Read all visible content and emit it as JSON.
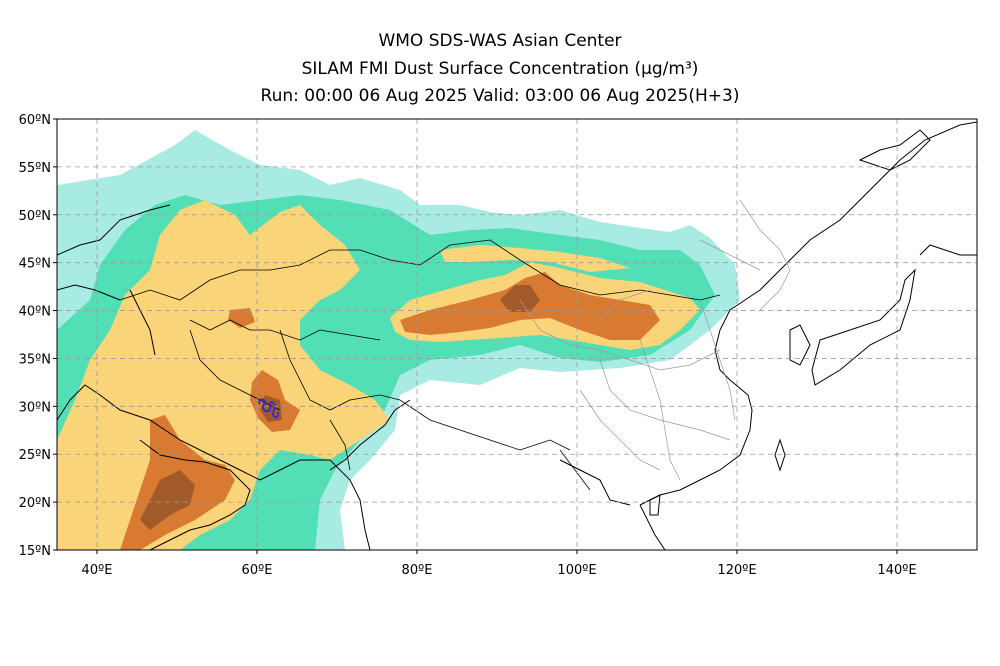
{
  "header": {
    "line1": "WMO SDS-WAS Asian Center",
    "line2": "SILAM FMI Dust Surface Concentration (μg/m³)",
    "line3": "Run: 00:00 06 Aug 2025    Valid: 03:00 06 Aug 2025(H+3)"
  },
  "map": {
    "projection": "lat-lon",
    "lon_range": [
      35,
      150
    ],
    "lat_range": [
      15,
      60
    ],
    "lat_ticks": [
      {
        "value": 60,
        "label": "60ºN"
      },
      {
        "value": 55,
        "label": "55ºN"
      },
      {
        "value": 50,
        "label": "50ºN"
      },
      {
        "value": 45,
        "label": "45ºN"
      },
      {
        "value": 40,
        "label": "40ºN"
      },
      {
        "value": 35,
        "label": "35ºN"
      },
      {
        "value": 30,
        "label": "30ºN"
      },
      {
        "value": 25,
        "label": "25ºN"
      },
      {
        "value": 20,
        "label": "20ºN"
      },
      {
        "value": 15,
        "label": "15ºN"
      }
    ],
    "lon_ticks": [
      {
        "value": 40,
        "label": "40ºE"
      },
      {
        "value": 60,
        "label": "60ºE"
      },
      {
        "value": 80,
        "label": "80ºE"
      },
      {
        "value": 100,
        "label": "100ºE"
      },
      {
        "value": 120,
        "label": "120ºE"
      },
      {
        "value": 140,
        "label": "140ºE"
      }
    ],
    "grid": "dashed",
    "colors": {
      "level1": "#a8ebe3",
      "level2": "#52dfb5",
      "level3": "#fad478",
      "level4": "#d97a33",
      "level5": "#a35a2a",
      "coast": "#000000",
      "province": "#999999",
      "marker": "#2b2bd6"
    }
  }
}
